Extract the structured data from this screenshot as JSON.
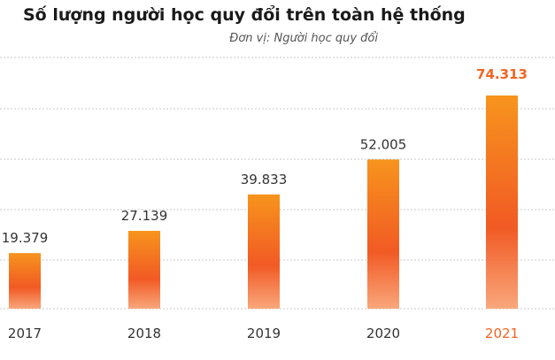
{
  "title": "Số lượng người học quy đổi trên toàn hệ thống",
  "subtitle": "Đơn vị: Người học quy đổi",
  "colors": {
    "bar_top": "#f7941d",
    "bar_mid": "#f15a24",
    "bar_bottom": "#f9a77c",
    "label": "#333333",
    "highlight": "#f26522",
    "grid": "#c8c8c8"
  },
  "chart_data": {
    "type": "bar",
    "categories": [
      "2017",
      "2018",
      "2019",
      "2020",
      "2021"
    ],
    "values": [
      19379,
      27139,
      39833,
      52005,
      74313
    ],
    "value_labels": [
      "19.379",
      "27.139",
      "39.833",
      "52.005",
      "74.313"
    ],
    "highlight_index": 4,
    "ylim": [
      0,
      78000
    ],
    "grid": true
  }
}
